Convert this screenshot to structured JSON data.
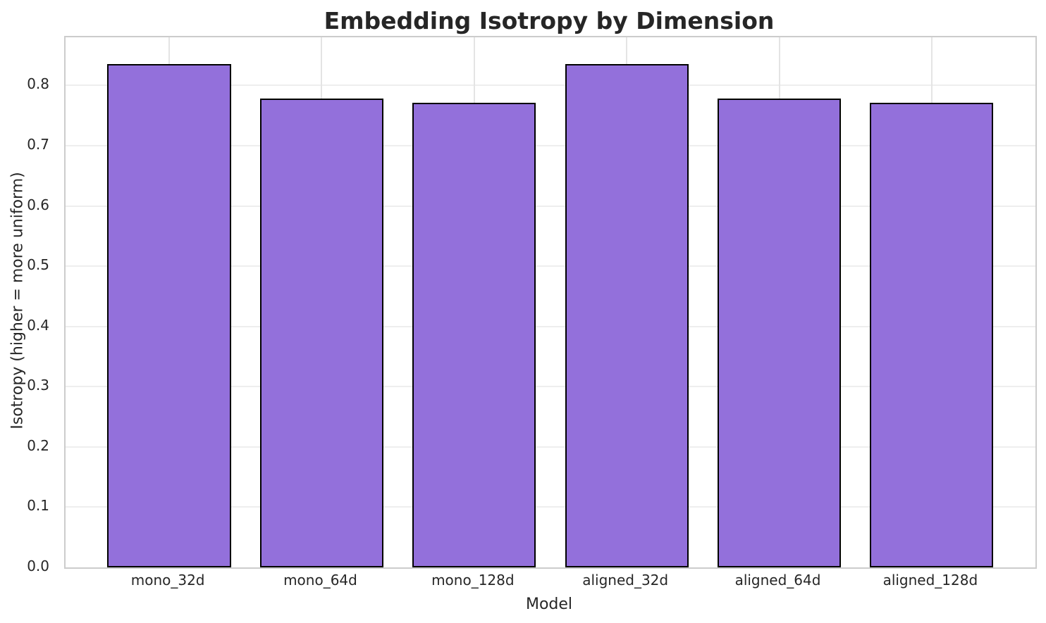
{
  "chart_data": {
    "type": "bar",
    "title": "Embedding Isotropy by Dimension",
    "xlabel": "Model",
    "ylabel": "Isotropy (higher = more uniform)",
    "categories": [
      "mono_32d",
      "mono_64d",
      "mono_128d",
      "aligned_32d",
      "aligned_64d",
      "aligned_128d"
    ],
    "values": [
      0.836,
      0.778,
      0.771,
      0.836,
      0.778,
      0.771
    ],
    "ylim": [
      0,
      0.88
    ],
    "yticks": [
      0.0,
      0.1,
      0.2,
      0.3,
      0.4,
      0.5,
      0.6,
      0.7,
      0.8
    ],
    "ytick_format_decimals": 1,
    "grid": true,
    "legend": "none",
    "bar_color": "#9370DB",
    "bar_edge_color": "#000000",
    "grid_color": "#eeeeee",
    "spine_color": "#cccccc",
    "text_color": "#262626",
    "background_color": "#ffffff"
  }
}
